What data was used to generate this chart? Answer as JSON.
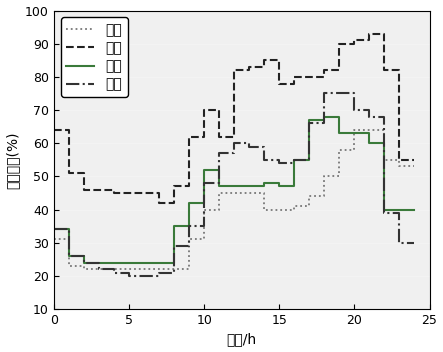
{
  "xlabel": "时刻/h",
  "ylabel": "负荷比例(%)",
  "xlim": [
    0,
    24
  ],
  "ylim": [
    10,
    100
  ],
  "xticks": [
    0,
    5,
    10,
    15,
    20,
    25
  ],
  "yticks": [
    10,
    20,
    30,
    40,
    50,
    60,
    70,
    80,
    90,
    100
  ],
  "legend_labels": [
    "春季",
    "夏季",
    "秋季",
    "冬季"
  ],
  "spring": {
    "x": [
      0,
      1,
      2,
      3,
      4,
      5,
      6,
      7,
      8,
      9,
      10,
      11,
      12,
      13,
      14,
      15,
      16,
      17,
      18,
      19,
      20,
      21,
      22,
      23,
      24
    ],
    "y": [
      31,
      23,
      22,
      22,
      22,
      22,
      22,
      22,
      22,
      31,
      40,
      45,
      45,
      45,
      40,
      40,
      41,
      44,
      50,
      58,
      64,
      64,
      55,
      53,
      53
    ]
  },
  "summer": {
    "x": [
      0,
      1,
      2,
      3,
      4,
      5,
      6,
      7,
      8,
      9,
      10,
      11,
      12,
      13,
      14,
      15,
      16,
      17,
      18,
      19,
      20,
      21,
      22,
      23,
      24
    ],
    "y": [
      64,
      51,
      46,
      46,
      45,
      45,
      45,
      42,
      47,
      62,
      70,
      62,
      82,
      83,
      85,
      78,
      80,
      80,
      82,
      90,
      91,
      93,
      82,
      55,
      55
    ]
  },
  "autumn": {
    "x": [
      0,
      1,
      2,
      3,
      4,
      5,
      6,
      7,
      8,
      9,
      10,
      11,
      12,
      13,
      14,
      15,
      16,
      17,
      18,
      19,
      20,
      21,
      22,
      23,
      24
    ],
    "y": [
      34,
      26,
      24,
      24,
      24,
      24,
      24,
      24,
      35,
      42,
      52,
      47,
      47,
      47,
      48,
      47,
      55,
      67,
      68,
      63,
      63,
      60,
      40,
      40,
      40
    ]
  },
  "winter": {
    "x": [
      0,
      1,
      2,
      3,
      4,
      5,
      6,
      7,
      8,
      9,
      10,
      11,
      12,
      13,
      14,
      15,
      16,
      17,
      18,
      19,
      20,
      21,
      22,
      23,
      24
    ],
    "y": [
      34,
      26,
      24,
      22,
      21,
      20,
      20,
      21,
      29,
      35,
      48,
      57,
      60,
      59,
      55,
      54,
      55,
      66,
      75,
      75,
      70,
      68,
      39,
      30,
      30
    ]
  },
  "spring_style": {
    "color": "#777777",
    "linestyle": "dotted",
    "linewidth": 1.3
  },
  "summer_style": {
    "color": "#222222",
    "linestyle": "dashed",
    "linewidth": 1.5
  },
  "autumn_style": {
    "color": "#3a7a3a",
    "linestyle": "solid",
    "linewidth": 1.5
  },
  "winter_style": {
    "color": "#333333",
    "linestyle": "dashdot",
    "linewidth": 1.5
  },
  "background_color": "#f0f0f0"
}
